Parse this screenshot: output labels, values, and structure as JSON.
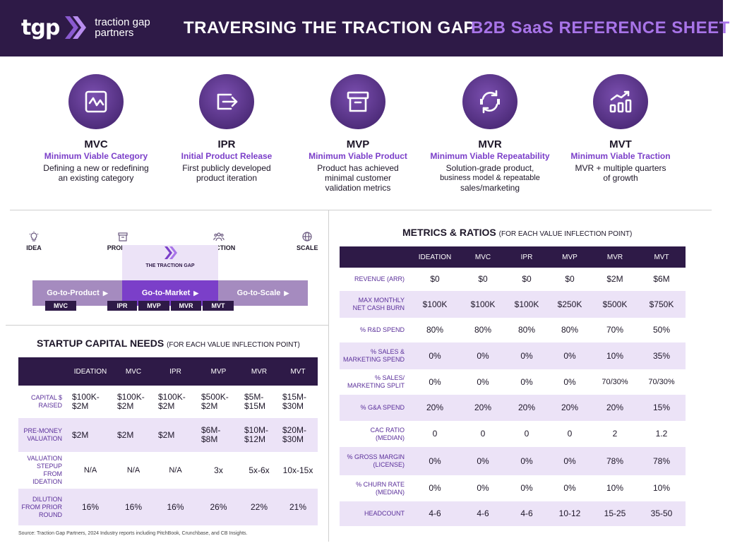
{
  "header": {
    "logo_mark": "tgp",
    "logo_line1": "traction gap",
    "logo_line2": "partners",
    "title": "TRAVERSING THE TRACTION GAP",
    "subtitle": "B2B SaaS REFERENCE SHEET"
  },
  "stages": [
    {
      "abbr": "MVC",
      "name": "Minimum Viable Category",
      "desc": [
        "Defining a new or redefining",
        "an existing category"
      ],
      "icon": "category-icon"
    },
    {
      "abbr": "IPR",
      "name": "Initial Product Release",
      "desc": [
        "First publicly developed",
        "product iteration"
      ],
      "icon": "release-icon"
    },
    {
      "abbr": "MVP",
      "name": "Minimum Viable Product",
      "desc": [
        "Product has achieved",
        "minimal customer",
        "validation metrics"
      ],
      "icon": "archive-box-icon"
    },
    {
      "abbr": "MVR",
      "name": "Minimum Viable Repeatability",
      "desc": [
        "Solution-grade product,",
        "business model &  repeatable",
        "sales/marketing"
      ],
      "icon": "repeat-icon"
    },
    {
      "abbr": "MVT",
      "name": "Minimum Viable Traction",
      "desc": [
        "MVR + multiple quarters",
        "of growth"
      ],
      "icon": "growth-chart-icon"
    }
  ],
  "journey": {
    "idea": "IDEA",
    "product": "PRODUCT",
    "traction": "TRACTION",
    "scale": "SCALE",
    "traction_gap": "THE TRACTION GAP",
    "go_to_product": "Go-to-Product",
    "go_to_market": "Go-to-Market",
    "go_to_scale": "Go-to-Scale",
    "pills": [
      "MVC",
      "IPR",
      "MVP",
      "MVR",
      "MVT"
    ]
  },
  "capital": {
    "title": "STARTUP CAPITAL NEEDS",
    "subtitle": "(FOR EACH VALUE INFLECTION POINT)",
    "columns": [
      "IDEATION",
      "MVC",
      "IPR",
      "MVP",
      "MVR",
      "MVT"
    ],
    "rows": [
      {
        "label": [
          "CAPITAL $",
          "RAISED"
        ],
        "values": [
          [
            "$100K-",
            "$2M"
          ],
          [
            "$100K-",
            "$2M"
          ],
          [
            "$100K-",
            "$2M"
          ],
          [
            "$500K-",
            "$2M"
          ],
          [
            "$5M-",
            "$15M"
          ],
          [
            "$15M-",
            "$30M"
          ]
        ]
      },
      {
        "label": [
          "PRE-MONEY",
          "VALUATION"
        ],
        "values": [
          [
            "$2M"
          ],
          [
            "$2M"
          ],
          [
            "$2M"
          ],
          [
            "$6M-",
            "$8M"
          ],
          [
            "$10M-",
            "$12M"
          ],
          [
            "$20M-",
            "$30M"
          ]
        ]
      },
      {
        "label": [
          "VALUATION",
          "STEPUP FROM",
          "IDEATION"
        ],
        "values": [
          [
            "N/A"
          ],
          [
            "N/A"
          ],
          [
            "N/A"
          ],
          [
            "3x"
          ],
          [
            "5x-6x"
          ],
          [
            "10x-15x"
          ]
        ]
      },
      {
        "label": [
          "DILUTION",
          "FROM PRIOR",
          "ROUND"
        ],
        "values": [
          [
            "16%"
          ],
          [
            "16%"
          ],
          [
            "16%"
          ],
          [
            "26%"
          ],
          [
            "22%"
          ],
          [
            "21%"
          ]
        ]
      }
    ]
  },
  "metrics": {
    "title": "METRICS & RATIOS",
    "subtitle": "(FOR EACH VALUE INFLECTION POINT)",
    "columns": [
      "IDEATION",
      "MVC",
      "IPR",
      "MVP",
      "MVR",
      "MVT"
    ],
    "rows": [
      {
        "label": [
          "REVENUE (ARR)"
        ],
        "values": [
          "$0",
          "$0",
          "$0",
          "$0",
          "$2M",
          "$6M"
        ]
      },
      {
        "label": [
          "MAX MONTHLY",
          "NET CASH BURN"
        ],
        "values": [
          "$100K",
          "$100K",
          "$100K",
          "$250K",
          "$500K",
          "$750K"
        ]
      },
      {
        "label": [
          "% R&D SPEND"
        ],
        "values": [
          "80%",
          "80%",
          "80%",
          "80%",
          "70%",
          "50%"
        ]
      },
      {
        "label": [
          "% SALES &",
          "MARKETING SPEND"
        ],
        "values": [
          "0%",
          "0%",
          "0%",
          "0%",
          "10%",
          "35%"
        ]
      },
      {
        "label": [
          "% SALES/",
          "MARKETING SPLIT"
        ],
        "values": [
          "0%",
          "0%",
          "0%",
          "0%",
          "70/30%",
          "70/30%"
        ]
      },
      {
        "label": [
          "% G&A SPEND"
        ],
        "values": [
          "20%",
          "20%",
          "20%",
          "20%",
          "20%",
          "15%"
        ]
      },
      {
        "label": [
          "CAC RATIO",
          "(MEDIAN)"
        ],
        "values": [
          "0",
          "0",
          "0",
          "0",
          "2",
          "1.2"
        ]
      },
      {
        "label": [
          "% GROSS MARGIN",
          "(LICENSE)"
        ],
        "values": [
          "0%",
          "0%",
          "0%",
          "0%",
          "78%",
          "78%"
        ]
      },
      {
        "label": [
          "% CHURN RATE",
          "(MEDIAN)"
        ],
        "values": [
          "0%",
          "0%",
          "0%",
          "0%",
          "10%",
          "10%"
        ]
      },
      {
        "label": [
          "HEADCOUNT"
        ],
        "values": [
          "4-6",
          "4-6",
          "4-6",
          "10-12",
          "15-25",
          "35-50"
        ]
      }
    ]
  },
  "source": "Source: Traction Gap Partners, 2024 Industry reports including  PitchBook, Crunchbase, and CB Insights.",
  "colors": {
    "brand_dark": "#2e1a47",
    "accent": "#7b3fc9",
    "accent_light": "#a874e8",
    "row_alt": "#ece3f7"
  }
}
